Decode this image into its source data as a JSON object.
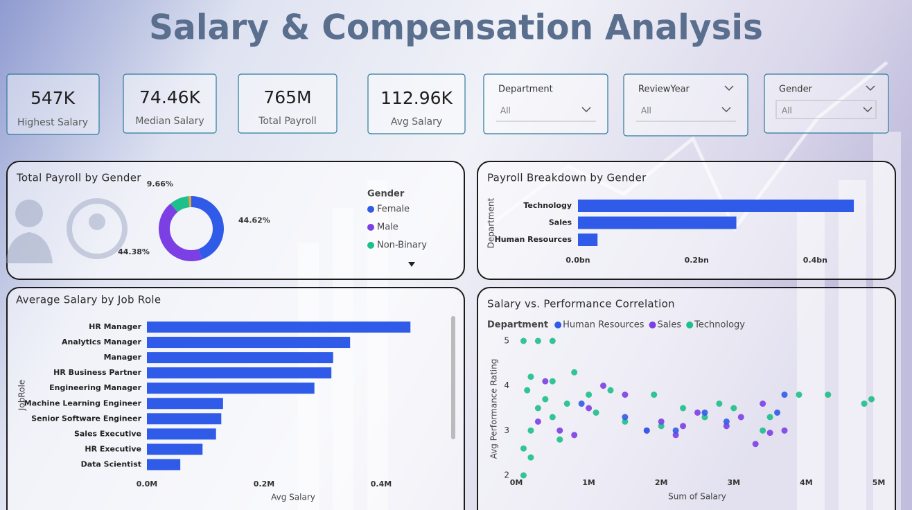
{
  "header": {
    "title": "Salary & Compensation Analysis"
  },
  "kpis": [
    {
      "value": "547K",
      "label": "Highest Salary"
    },
    {
      "value": "74.46K",
      "label": "Median Salary"
    },
    {
      "value": "765M",
      "label": "Total Payroll"
    },
    {
      "value": "112.96K",
      "label": "Avg Salary"
    }
  ],
  "slicers": [
    {
      "label": "Department",
      "value": "All"
    },
    {
      "label": "ReviewYear",
      "value": "All"
    },
    {
      "label": "Gender",
      "value": "All"
    }
  ],
  "chart_data": [
    {
      "type": "pie",
      "title": "Total Payroll by Gender",
      "legend_title": "Gender",
      "categories": [
        "Female",
        "Male",
        "Non-Binary",
        null
      ],
      "values": [
        44.62,
        44.38,
        9.66,
        1.34
      ],
      "value_labels": [
        "44.62%",
        "44.38%",
        "9.66%",
        null
      ],
      "colors": [
        "#2f5be8",
        "#7b3fe4",
        "#1dbf8a",
        "#e8a33d"
      ],
      "donut": true
    },
    {
      "type": "bar",
      "orientation": "horizontal",
      "title": "Payroll Breakdown by Gender",
      "y_label": "Department",
      "categories": [
        "Technology",
        "Sales",
        "Human Resources"
      ],
      "values": [
        465000000,
        267000000,
        33000000
      ],
      "color": "#2f5be8",
      "xlim": [
        0,
        500000000
      ],
      "xticks": [
        {
          "value": 0,
          "label": "0.0bn"
        },
        {
          "value": 200000000,
          "label": "0.2bn"
        },
        {
          "value": 400000000,
          "label": "0.4bn"
        }
      ],
      "grid": false
    },
    {
      "type": "bar",
      "orientation": "horizontal",
      "title": "Average Salary by Job Role",
      "x_label": "Avg Salary",
      "y_label": "JobRole",
      "categories": [
        "HR Manager",
        "Analytics Manager",
        "Manager",
        "HR Business Partner",
        "Engineering Manager",
        "Machine Learning Engineer",
        "Senior Software Engineer",
        "Sales Executive",
        "HR Executive",
        "Data Scientist"
      ],
      "values": [
        450000,
        347000,
        318000,
        315000,
        286000,
        130000,
        127000,
        118000,
        95000,
        57000
      ],
      "color": "#2f5be8",
      "xlim": [
        0,
        500000
      ],
      "xticks": [
        {
          "value": 0,
          "label": "0.0M"
        },
        {
          "value": 200000,
          "label": "0.2M"
        },
        {
          "value": 400000,
          "label": "0.4M"
        }
      ],
      "grid": false
    },
    {
      "type": "scatter",
      "title": "Salary vs. Performance Correlation",
      "legend_title": "Department",
      "x_label": "Sum of Salary",
      "y_label": "Avg Performance Rating",
      "series": [
        {
          "name": "Human Resources",
          "color": "#2f5be8",
          "x": [
            1800000,
            2200000,
            3700000,
            2600000,
            3600000,
            1500000,
            900000,
            2900000
          ],
          "values": [
            3.0,
            3.0,
            3.8,
            3.4,
            3.4,
            3.3,
            3.6,
            3.2
          ]
        },
        {
          "name": "Sales",
          "color": "#7b3fe4",
          "x": [
            400000,
            1200000,
            1500000,
            2000000,
            2500000,
            2900000,
            3100000,
            3300000,
            3400000,
            3700000,
            3500000,
            800000,
            600000,
            1800000,
            2300000,
            1000000,
            300000,
            2200000
          ],
          "values": [
            4.1,
            4.0,
            3.8,
            3.2,
            3.4,
            3.1,
            3.3,
            2.7,
            3.6,
            3.0,
            2.95,
            2.9,
            3.0,
            3.0,
            3.1,
            3.5,
            3.2,
            2.9
          ]
        },
        {
          "name": "Technology",
          "color": "#1dbf8a",
          "x": [
            100000,
            300000,
            500000,
            200000,
            500000,
            800000,
            1000000,
            1300000,
            1900000,
            2300000,
            2600000,
            3000000,
            3500000,
            3900000,
            4300000,
            4800000,
            4900000,
            300000,
            500000,
            200000,
            100000,
            200000,
            100000,
            600000,
            400000,
            1500000,
            2000000,
            2800000,
            150000,
            700000,
            3400000,
            1100000
          ],
          "values": [
            5.0,
            5.0,
            5.0,
            4.2,
            4.1,
            4.3,
            3.8,
            3.9,
            3.8,
            3.5,
            3.3,
            3.5,
            3.3,
            3.8,
            3.8,
            3.6,
            3.7,
            3.5,
            3.3,
            3.0,
            2.6,
            2.4,
            2.0,
            2.8,
            3.7,
            3.2,
            3.1,
            3.6,
            3.9,
            3.6,
            3.0,
            3.4
          ]
        }
      ],
      "xlim": [
        0,
        5000000
      ],
      "xticks": [
        {
          "value": 0,
          "label": "0M"
        },
        {
          "value": 1000000,
          "label": "1M"
        },
        {
          "value": 2000000,
          "label": "2M"
        },
        {
          "value": 3000000,
          "label": "3M"
        },
        {
          "value": 4000000,
          "label": "4M"
        },
        {
          "value": 5000000,
          "label": "5M"
        }
      ],
      "ylim": [
        2,
        5
      ],
      "yticks": [
        2,
        3,
        4,
        5
      ],
      "grid": false
    }
  ]
}
